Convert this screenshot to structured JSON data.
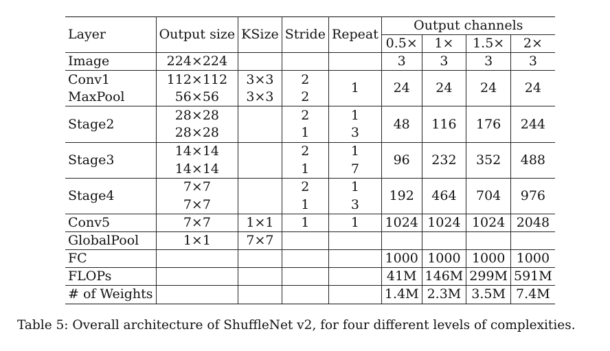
{
  "table": {
    "headers": {
      "layer": "Layer",
      "output_size": "Output size",
      "ksize": "KSize",
      "stride": "Stride",
      "repeat": "Repeat",
      "output_channels": "Output channels",
      "complexities": [
        "0.5×",
        "1×",
        "1.5×",
        "2×"
      ]
    },
    "rows": {
      "image": {
        "layer": "Image",
        "output_size": "224×224",
        "channels": [
          "3",
          "3",
          "3",
          "3"
        ]
      },
      "conv1": {
        "layer": "Conv1",
        "output_size": "112×112",
        "ksize": "3×3",
        "stride": "2"
      },
      "maxpool": {
        "layer": "MaxPool",
        "output_size": "56×56",
        "ksize": "3×3",
        "stride": "2"
      },
      "conv1_maxpool": {
        "repeat": "1",
        "channels": [
          "24",
          "24",
          "24",
          "24"
        ]
      },
      "stage2": {
        "layer": "Stage2",
        "sub": [
          {
            "output_size": "28×28",
            "stride": "2",
            "repeat": "1"
          },
          {
            "output_size": "28×28",
            "stride": "1",
            "repeat": "3"
          }
        ],
        "channels": [
          "48",
          "116",
          "176",
          "244"
        ]
      },
      "stage3": {
        "layer": "Stage3",
        "sub": [
          {
            "output_size": "14×14",
            "stride": "2",
            "repeat": "1"
          },
          {
            "output_size": "14×14",
            "stride": "1",
            "repeat": "7"
          }
        ],
        "channels": [
          "96",
          "232",
          "352",
          "488"
        ]
      },
      "stage4": {
        "layer": "Stage4",
        "sub": [
          {
            "output_size": "7×7",
            "stride": "2",
            "repeat": "1"
          },
          {
            "output_size": "7×7",
            "stride": "1",
            "repeat": "3"
          }
        ],
        "channels": [
          "192",
          "464",
          "704",
          "976"
        ]
      },
      "conv5": {
        "layer": "Conv5",
        "output_size": "7×7",
        "ksize": "1×1",
        "stride": "1",
        "repeat": "1",
        "channels": [
          "1024",
          "1024",
          "1024",
          "2048"
        ]
      },
      "globalpool": {
        "layer": "GlobalPool",
        "output_size": "1×1",
        "ksize": "7×7"
      },
      "fc": {
        "layer": "FC",
        "channels": [
          "1000",
          "1000",
          "1000",
          "1000"
        ]
      },
      "flops": {
        "layer": "FLOPs",
        "channels": [
          "41M",
          "146M",
          "299M",
          "591M"
        ]
      },
      "weights": {
        "layer": "# of Weights",
        "channels": [
          "1.4M",
          "2.3M",
          "3.5M",
          "7.4M"
        ]
      }
    }
  },
  "caption": "Table 5: Overall architecture of ShuffleNet v2, for four different levels of complexities."
}
